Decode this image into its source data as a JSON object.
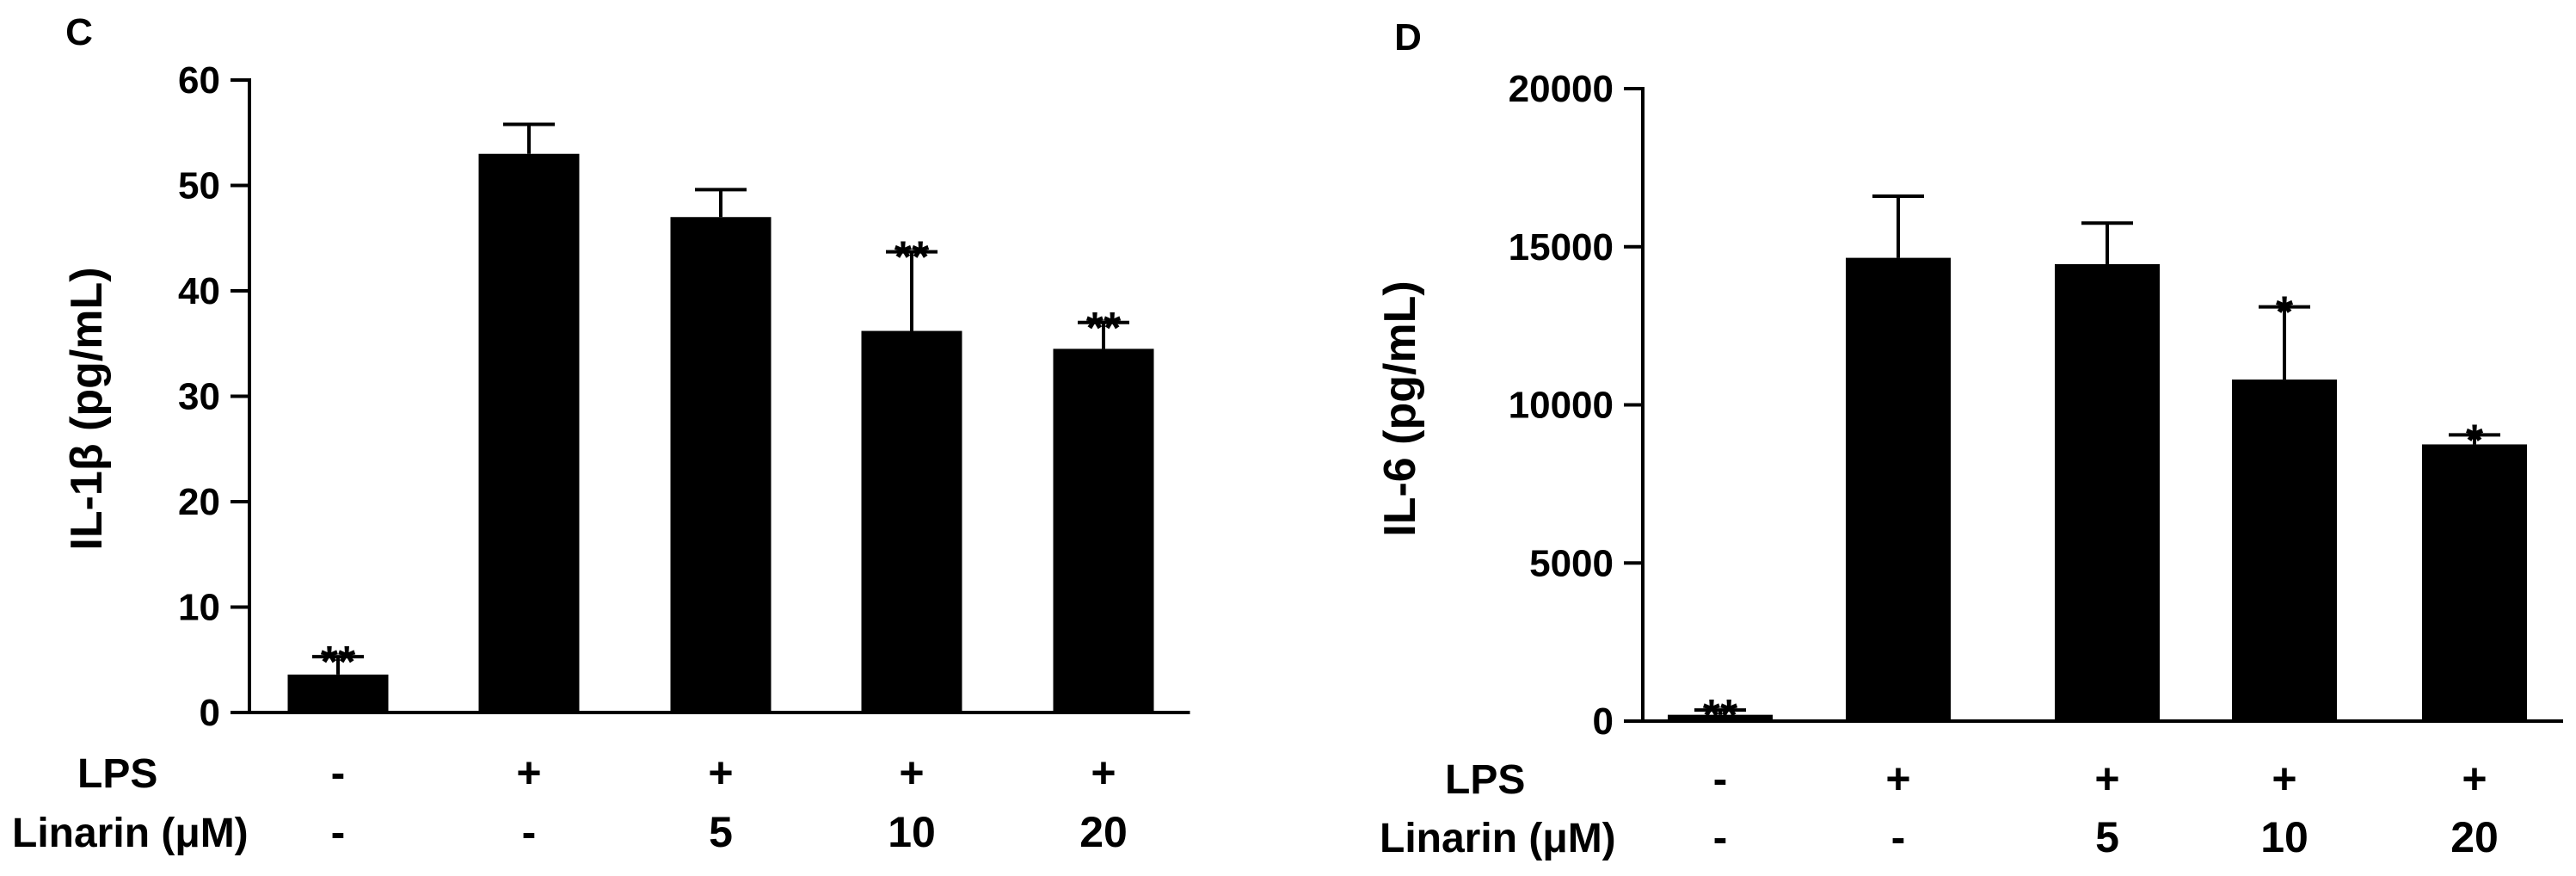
{
  "chart_data": [
    {
      "type": "bar",
      "panel_label": "C",
      "ylabel": "IL-1β (pg/mL)",
      "ylim": [
        0,
        60
      ],
      "yticks": [
        "0",
        "10",
        "20",
        "30",
        "40",
        "50",
        "60"
      ],
      "ytick_values": [
        0,
        10,
        20,
        30,
        40,
        50,
        60
      ],
      "series": [
        {
          "values": [
            3.6,
            53,
            47,
            36.2,
            34.5
          ]
        }
      ],
      "errors": [
        1.7,
        2.8,
        2.6,
        7.5,
        2.5
      ],
      "significance": [
        "**",
        "",
        "",
        "**",
        "**"
      ],
      "row_labels": [
        "LPS",
        "Linarin (μM)"
      ],
      "conditions": {
        "lps": [
          "-",
          "+",
          "+",
          "+",
          "+"
        ],
        "linarin": [
          "-",
          "-",
          "5",
          "10",
          "20"
        ]
      }
    },
    {
      "type": "bar",
      "panel_label": "D",
      "ylabel": "IL-6 (pg/mL)",
      "ylim": [
        0,
        20000
      ],
      "yticks": [
        "0",
        "5000",
        "10000",
        "15000",
        "20000"
      ],
      "ytick_values": [
        0,
        5000,
        10000,
        15000,
        20000
      ],
      "series": [
        {
          "values": [
            200,
            14650,
            14450,
            10800,
            8750
          ]
        }
      ],
      "errors": [
        150,
        1950,
        1300,
        2300,
        300
      ],
      "significance": [
        "**",
        "",
        "",
        "*",
        "*"
      ],
      "row_labels": [
        "LPS",
        "Linarin (μM)"
      ],
      "conditions": {
        "lps": [
          "-",
          "+",
          "+",
          "+",
          "+"
        ],
        "linarin": [
          "-",
          "-",
          "5",
          "10",
          "20"
        ]
      }
    }
  ]
}
